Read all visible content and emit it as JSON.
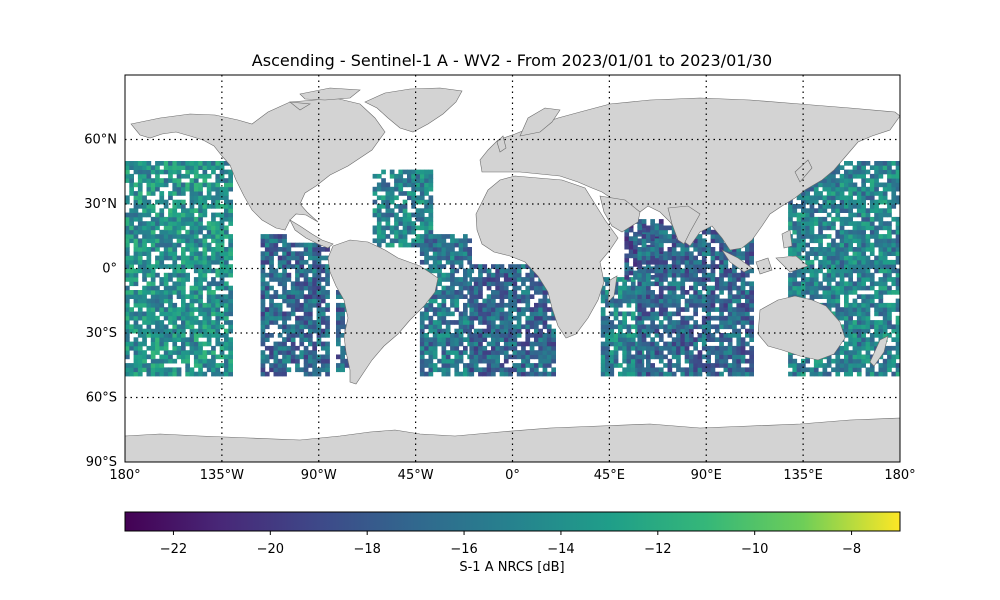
{
  "title": "Ascending - Sentinel-1 A - WV2 - From 2023/01/01 to 2023/01/30",
  "map": {
    "projection": "equirectangular",
    "lon_range": [
      -180,
      180
    ],
    "lat_range": [
      -90,
      90
    ],
    "grid": "dotted",
    "grid_lons": [
      -135,
      -90,
      -45,
      0,
      45,
      90,
      135
    ],
    "grid_lats": [
      60,
      30,
      0,
      -30,
      -60
    ],
    "land_color": "#d3d3d3",
    "ocean_color": "#ffffff",
    "x_ticks": [
      {
        "value": -180,
        "label": "180°"
      },
      {
        "value": -135,
        "label": "135°W"
      },
      {
        "value": -90,
        "label": "90°W"
      },
      {
        "value": -45,
        "label": "45°W"
      },
      {
        "value": 0,
        "label": "0°"
      },
      {
        "value": 45,
        "label": "45°E"
      },
      {
        "value": 90,
        "label": "90°E"
      },
      {
        "value": 135,
        "label": "135°E"
      },
      {
        "value": 180,
        "label": "180°"
      }
    ],
    "y_ticks": [
      {
        "value": 60,
        "label": "60°N"
      },
      {
        "value": 30,
        "label": "30°N"
      },
      {
        "value": 0,
        "label": "0°"
      },
      {
        "value": -30,
        "label": "30°S"
      },
      {
        "value": -60,
        "label": "60°S"
      },
      {
        "value": -90,
        "label": "90°S"
      }
    ]
  },
  "swaths": [
    {
      "lon_min": -180,
      "lon_max": -130,
      "lat_min": -50,
      "lat_max": 50,
      "bias": -14
    },
    {
      "lon_min": -117,
      "lon_max": -106,
      "lat_min": -50,
      "lat_max": 15,
      "bias": -17
    },
    {
      "lon_min": -107,
      "lon_max": -97,
      "lat_min": -48,
      "lat_max": 12,
      "bias": -17
    },
    {
      "lon_min": -97,
      "lon_max": -86,
      "lat_min": -50,
      "lat_max": 12,
      "bias": -17
    },
    {
      "lon_min": -82,
      "lon_max": -76,
      "lat_min": -48,
      "lat_max": -10,
      "bias": -17
    },
    {
      "lon_min": -65,
      "lon_max": -37,
      "lat_min": 10,
      "lat_max": 45,
      "bias": -15
    },
    {
      "lon_min": -43,
      "lon_max": -20,
      "lat_min": -50,
      "lat_max": 15,
      "bias": -16
    },
    {
      "lon_min": -20,
      "lon_max": 20,
      "lat_min": -50,
      "lat_max": 2,
      "bias": -17
    },
    {
      "lon_min": 41,
      "lon_max": 60,
      "lat_min": -50,
      "lat_max": -5,
      "bias": -15
    },
    {
      "lon_min": 52,
      "lon_max": 70,
      "lat_min": -5,
      "lat_max": 22,
      "bias": -18
    },
    {
      "lon_min": 58,
      "lon_max": 112,
      "lat_min": -50,
      "lat_max": 20,
      "bias": -17
    },
    {
      "lon_min": 128,
      "lon_max": 180,
      "lat_min": -50,
      "lat_max": 50,
      "bias": -15
    }
  ],
  "colorbar": {
    "label": "S-1 A NRCS [dB]",
    "vmin": -23,
    "vmax": -7,
    "colormap": "viridis",
    "ticks": [
      -22,
      -20,
      -18,
      -16,
      -14,
      -12,
      -10,
      -8
    ],
    "tick_labels": [
      "−22",
      "−20",
      "−18",
      "−16",
      "−14",
      "−12",
      "−10",
      "−8"
    ]
  }
}
